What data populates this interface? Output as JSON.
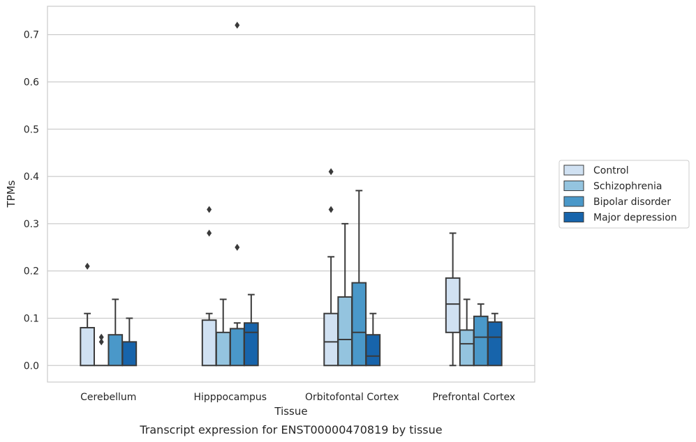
{
  "chart_data": {
    "type": "box",
    "title": "",
    "xlabel": "Tissue",
    "ylabel": "TPMs",
    "caption": "Transcript expression for ENST00000470819 by tissue",
    "ylim": [
      -0.035,
      0.76
    ],
    "yticks": [
      0.0,
      0.1,
      0.2,
      0.3,
      0.4,
      0.5,
      0.6,
      0.7
    ],
    "ytick_labels": [
      "0.0",
      "0.1",
      "0.2",
      "0.3",
      "0.4",
      "0.5",
      "0.6",
      "0.7"
    ],
    "grid": "horizontal",
    "legend_position": "right",
    "categories": [
      "Cerebellum",
      "Hipppocampus",
      "Orbitofontal Cortex",
      "Prefrontal Cortex"
    ],
    "series": [
      {
        "name": "Control",
        "color": "#d0e1f2",
        "boxes": [
          {
            "whislo": 0.0,
            "q1": 0.0,
            "med": 0.0,
            "q3": 0.08,
            "whishi": 0.11,
            "fliers": [
              0.21
            ]
          },
          {
            "whislo": 0.0,
            "q1": 0.0,
            "med": 0.0,
            "q3": 0.096,
            "whishi": 0.11,
            "fliers": [
              0.28,
              0.33
            ]
          },
          {
            "whislo": 0.0,
            "q1": 0.0,
            "med": 0.05,
            "q3": 0.11,
            "whishi": 0.23,
            "fliers": [
              0.33,
              0.41
            ]
          },
          {
            "whislo": 0.0,
            "q1": 0.07,
            "med": 0.13,
            "q3": 0.185,
            "whishi": 0.28,
            "fliers": []
          }
        ]
      },
      {
        "name": "Schizophrenia",
        "color": "#94c4df",
        "boxes": [
          {
            "whislo": 0.0,
            "q1": 0.0,
            "med": 0.0,
            "q3": 0.0,
            "whishi": 0.0,
            "fliers": [
              0.05,
              0.06
            ]
          },
          {
            "whislo": 0.0,
            "q1": 0.0,
            "med": 0.0,
            "q3": 0.07,
            "whishi": 0.14,
            "fliers": []
          },
          {
            "whislo": 0.0,
            "q1": 0.0,
            "med": 0.055,
            "q3": 0.145,
            "whishi": 0.3,
            "fliers": []
          },
          {
            "whislo": 0.0,
            "q1": 0.0,
            "med": 0.046,
            "q3": 0.075,
            "whishi": 0.14,
            "fliers": []
          }
        ]
      },
      {
        "name": "Bipolar disorder",
        "color": "#4a98c9",
        "boxes": [
          {
            "whislo": 0.0,
            "q1": 0.0,
            "med": 0.0,
            "q3": 0.065,
            "whishi": 0.14,
            "fliers": []
          },
          {
            "whislo": 0.0,
            "q1": 0.0,
            "med": 0.0,
            "q3": 0.078,
            "whishi": 0.09,
            "fliers": [
              0.25,
              0.72
            ]
          },
          {
            "whislo": 0.0,
            "q1": 0.0,
            "med": 0.07,
            "q3": 0.175,
            "whishi": 0.37,
            "fliers": []
          },
          {
            "whislo": 0.0,
            "q1": 0.0,
            "med": 0.06,
            "q3": 0.104,
            "whishi": 0.13,
            "fliers": []
          }
        ]
      },
      {
        "name": "Major depression",
        "color": "#1764ab",
        "boxes": [
          {
            "whislo": 0.0,
            "q1": 0.0,
            "med": 0.0,
            "q3": 0.05,
            "whishi": 0.1,
            "fliers": []
          },
          {
            "whislo": 0.0,
            "q1": 0.0,
            "med": 0.07,
            "q3": 0.09,
            "whishi": 0.15,
            "fliers": []
          },
          {
            "whislo": 0.0,
            "q1": 0.0,
            "med": 0.02,
            "q3": 0.065,
            "whishi": 0.11,
            "fliers": []
          },
          {
            "whislo": 0.0,
            "q1": 0.0,
            "med": 0.06,
            "q3": 0.092,
            "whishi": 0.11,
            "fliers": []
          }
        ]
      }
    ]
  }
}
